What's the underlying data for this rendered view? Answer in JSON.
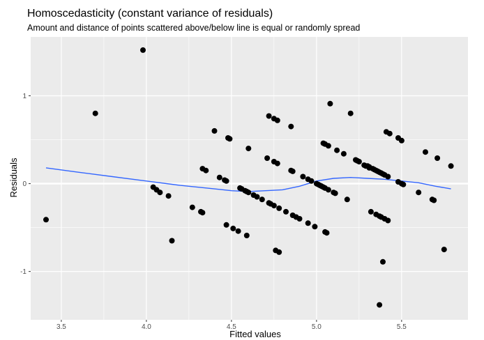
{
  "chart_data": {
    "type": "scatter",
    "title": "Homoscedasticity (constant variance of residuals)",
    "subtitle": "Amount and distance of points scattered above/below line is equal or randomly spread",
    "xlabel": "Fitted values",
    "ylabel": "Residuals",
    "xlim": [
      3.32,
      5.89
    ],
    "ylim": [
      -1.55,
      1.67
    ],
    "x_ticks": [
      3.5,
      4.0,
      4.5,
      5.0,
      5.5
    ],
    "x_tick_labels": [
      "3.5",
      "4.0",
      "4.5",
      "5.0",
      "5.5"
    ],
    "y_ticks": [
      -1,
      0,
      1
    ],
    "y_tick_labels": [
      "-1",
      "0",
      "1"
    ],
    "grid": true,
    "panel_background": "#ebebeb",
    "grid_color": "#ffffff",
    "point_color": "#000000",
    "smooth_color": "#3366ff",
    "reference_line_y": 0,
    "points": [
      [
        3.41,
        -0.41
      ],
      [
        3.7,
        0.8
      ],
      [
        3.98,
        1.52
      ],
      [
        4.04,
        -0.04
      ],
      [
        4.06,
        -0.07
      ],
      [
        4.08,
        -0.1
      ],
      [
        4.13,
        -0.14
      ],
      [
        4.15,
        -0.65
      ],
      [
        4.27,
        -0.27
      ],
      [
        4.32,
        -0.32
      ],
      [
        4.33,
        -0.33
      ],
      [
        4.33,
        0.17
      ],
      [
        4.35,
        0.15
      ],
      [
        4.4,
        0.6
      ],
      [
        4.43,
        0.07
      ],
      [
        4.46,
        0.04
      ],
      [
        4.47,
        0.03
      ],
      [
        4.47,
        -0.47
      ],
      [
        4.48,
        0.52
      ],
      [
        4.49,
        0.51
      ],
      [
        4.51,
        -0.51
      ],
      [
        4.54,
        -0.54
      ],
      [
        4.55,
        -0.05
      ],
      [
        4.56,
        -0.06
      ],
      [
        4.58,
        -0.08
      ],
      [
        4.59,
        -0.09
      ],
      [
        4.59,
        -0.59
      ],
      [
        4.6,
        0.4
      ],
      [
        4.6,
        -0.1
      ],
      [
        4.63,
        -0.13
      ],
      [
        4.65,
        -0.15
      ],
      [
        4.68,
        -0.18
      ],
      [
        4.71,
        0.29
      ],
      [
        4.72,
        -0.22
      ],
      [
        4.72,
        0.77
      ],
      [
        4.73,
        -0.23
      ],
      [
        4.75,
        -0.25
      ],
      [
        4.75,
        0.25
      ],
      [
        4.75,
        0.74
      ],
      [
        4.76,
        -0.76
      ],
      [
        4.77,
        0.23
      ],
      [
        4.77,
        0.72
      ],
      [
        4.78,
        -0.78
      ],
      [
        4.78,
        -0.28
      ],
      [
        4.82,
        -0.32
      ],
      [
        4.85,
        0.15
      ],
      [
        4.85,
        0.65
      ],
      [
        4.86,
        0.14
      ],
      [
        4.86,
        -0.36
      ],
      [
        4.88,
        -0.38
      ],
      [
        4.9,
        -0.4
      ],
      [
        4.92,
        0.08
      ],
      [
        4.95,
        0.05
      ],
      [
        4.95,
        -0.45
      ],
      [
        4.97,
        0.03
      ],
      [
        4.99,
        -0.49
      ],
      [
        5.0,
        0.0
      ],
      [
        5.01,
        -0.01
      ],
      [
        5.02,
        -0.02
      ],
      [
        5.03,
        -0.03
      ],
      [
        5.04,
        0.46
      ],
      [
        5.04,
        -0.04
      ],
      [
        5.05,
        -0.05
      ],
      [
        5.05,
        0.45
      ],
      [
        5.05,
        -0.55
      ],
      [
        5.06,
        -0.56
      ],
      [
        5.07,
        0.43
      ],
      [
        5.07,
        -0.07
      ],
      [
        5.08,
        0.91
      ],
      [
        5.1,
        -0.1
      ],
      [
        5.11,
        -0.11
      ],
      [
        5.12,
        0.38
      ],
      [
        5.16,
        0.34
      ],
      [
        5.18,
        -0.18
      ],
      [
        5.2,
        0.8
      ],
      [
        5.23,
        0.27
      ],
      [
        5.24,
        0.26
      ],
      [
        5.25,
        0.25
      ],
      [
        5.28,
        0.21
      ],
      [
        5.29,
        0.2
      ],
      [
        5.3,
        0.2
      ],
      [
        5.31,
        0.19
      ],
      [
        5.31,
        0.18
      ],
      [
        5.32,
        -0.32
      ],
      [
        5.33,
        0.17
      ],
      [
        5.34,
        0.16
      ],
      [
        5.35,
        0.15
      ],
      [
        5.35,
        -0.35
      ],
      [
        5.36,
        0.14
      ],
      [
        5.37,
        -0.37
      ],
      [
        5.37,
        0.13
      ],
      [
        5.37,
        -1.38
      ],
      [
        5.38,
        0.12
      ],
      [
        5.38,
        -0.38
      ],
      [
        5.39,
        0.11
      ],
      [
        5.39,
        -0.89
      ],
      [
        5.4,
        0.1
      ],
      [
        5.4,
        -0.4
      ],
      [
        5.41,
        0.59
      ],
      [
        5.42,
        -0.42
      ],
      [
        5.42,
        0.08
      ],
      [
        5.43,
        0.57
      ],
      [
        5.48,
        0.02
      ],
      [
        5.48,
        0.52
      ],
      [
        5.5,
        0.49
      ],
      [
        5.5,
        0.0
      ],
      [
        5.51,
        -0.01
      ],
      [
        5.6,
        -0.1
      ],
      [
        5.64,
        0.36
      ],
      [
        5.68,
        -0.18
      ],
      [
        5.69,
        -0.19
      ],
      [
        5.71,
        0.29
      ],
      [
        5.75,
        -0.75
      ],
      [
        5.79,
        0.2
      ]
    ],
    "smooth_line": [
      [
        3.41,
        0.18
      ],
      [
        3.6,
        0.13
      ],
      [
        3.8,
        0.08
      ],
      [
        4.0,
        0.03
      ],
      [
        4.2,
        -0.02
      ],
      [
        4.4,
        -0.06
      ],
      [
        4.5,
        -0.08
      ],
      [
        4.6,
        -0.09
      ],
      [
        4.7,
        -0.08
      ],
      [
        4.8,
        -0.07
      ],
      [
        4.9,
        -0.03
      ],
      [
        5.0,
        0.03
      ],
      [
        5.1,
        0.06
      ],
      [
        5.2,
        0.07
      ],
      [
        5.3,
        0.06
      ],
      [
        5.4,
        0.05
      ],
      [
        5.5,
        0.03
      ],
      [
        5.6,
        0.01
      ],
      [
        5.7,
        -0.03
      ],
      [
        5.79,
        -0.06
      ]
    ]
  }
}
